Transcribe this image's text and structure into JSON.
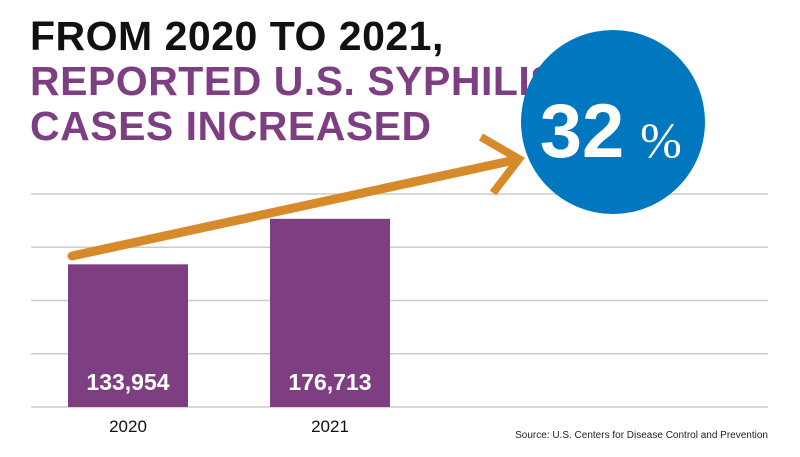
{
  "title_lines": [
    "From 2020 to 2021,",
    "reported U.S. syphilis",
    "cases increased"
  ],
  "callout": {
    "value": "32",
    "unit": "%"
  },
  "source": "Source: U.S. Centers for Disease Control and Prevention",
  "colors": {
    "bar": "#7e3f82",
    "arrow": "#d68a2a",
    "circle": "#0077bf",
    "grid": "#cccccc",
    "title_black": "#111111",
    "title_purple": "#7e3f82"
  },
  "chart_data": {
    "type": "bar",
    "categories": [
      "2020",
      "2021"
    ],
    "values": [
      133954,
      176713
    ],
    "data_labels": [
      "133,954",
      "176,713"
    ],
    "ylim": [
      0,
      200000
    ],
    "grid": true,
    "gridline_step": 50000,
    "annotation": "32% increase arrow"
  }
}
